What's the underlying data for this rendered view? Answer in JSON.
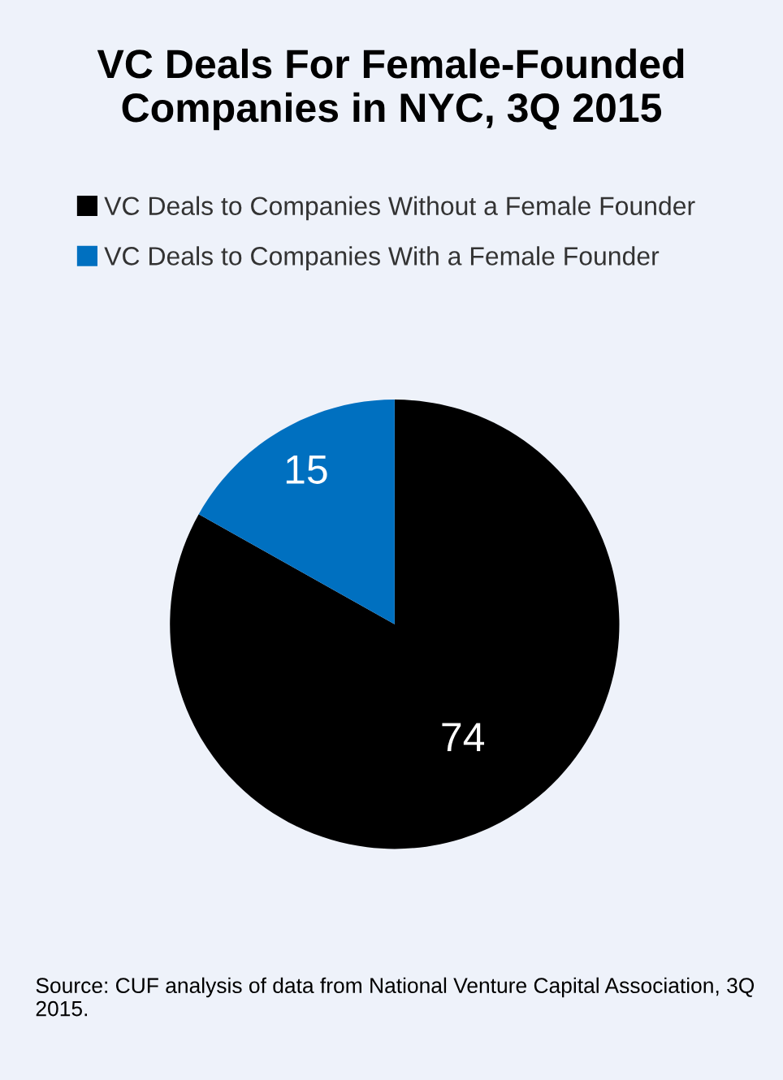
{
  "chart_data": {
    "type": "pie",
    "title": "VC Deals For Female-Founded\nCompanies in NYC, 3Q 2015",
    "categories": [
      "VC Deals to Companies Without a Female Founder",
      "VC Deals to Companies With a Female Founder"
    ],
    "values": [
      74,
      15
    ],
    "colors": [
      "#000000",
      "#0070c0"
    ],
    "data_labels": true,
    "legend": "top",
    "annotations": [
      "Source: CUF analysis of data from National Venture Capital Association, 3Q 2015."
    ]
  }
}
